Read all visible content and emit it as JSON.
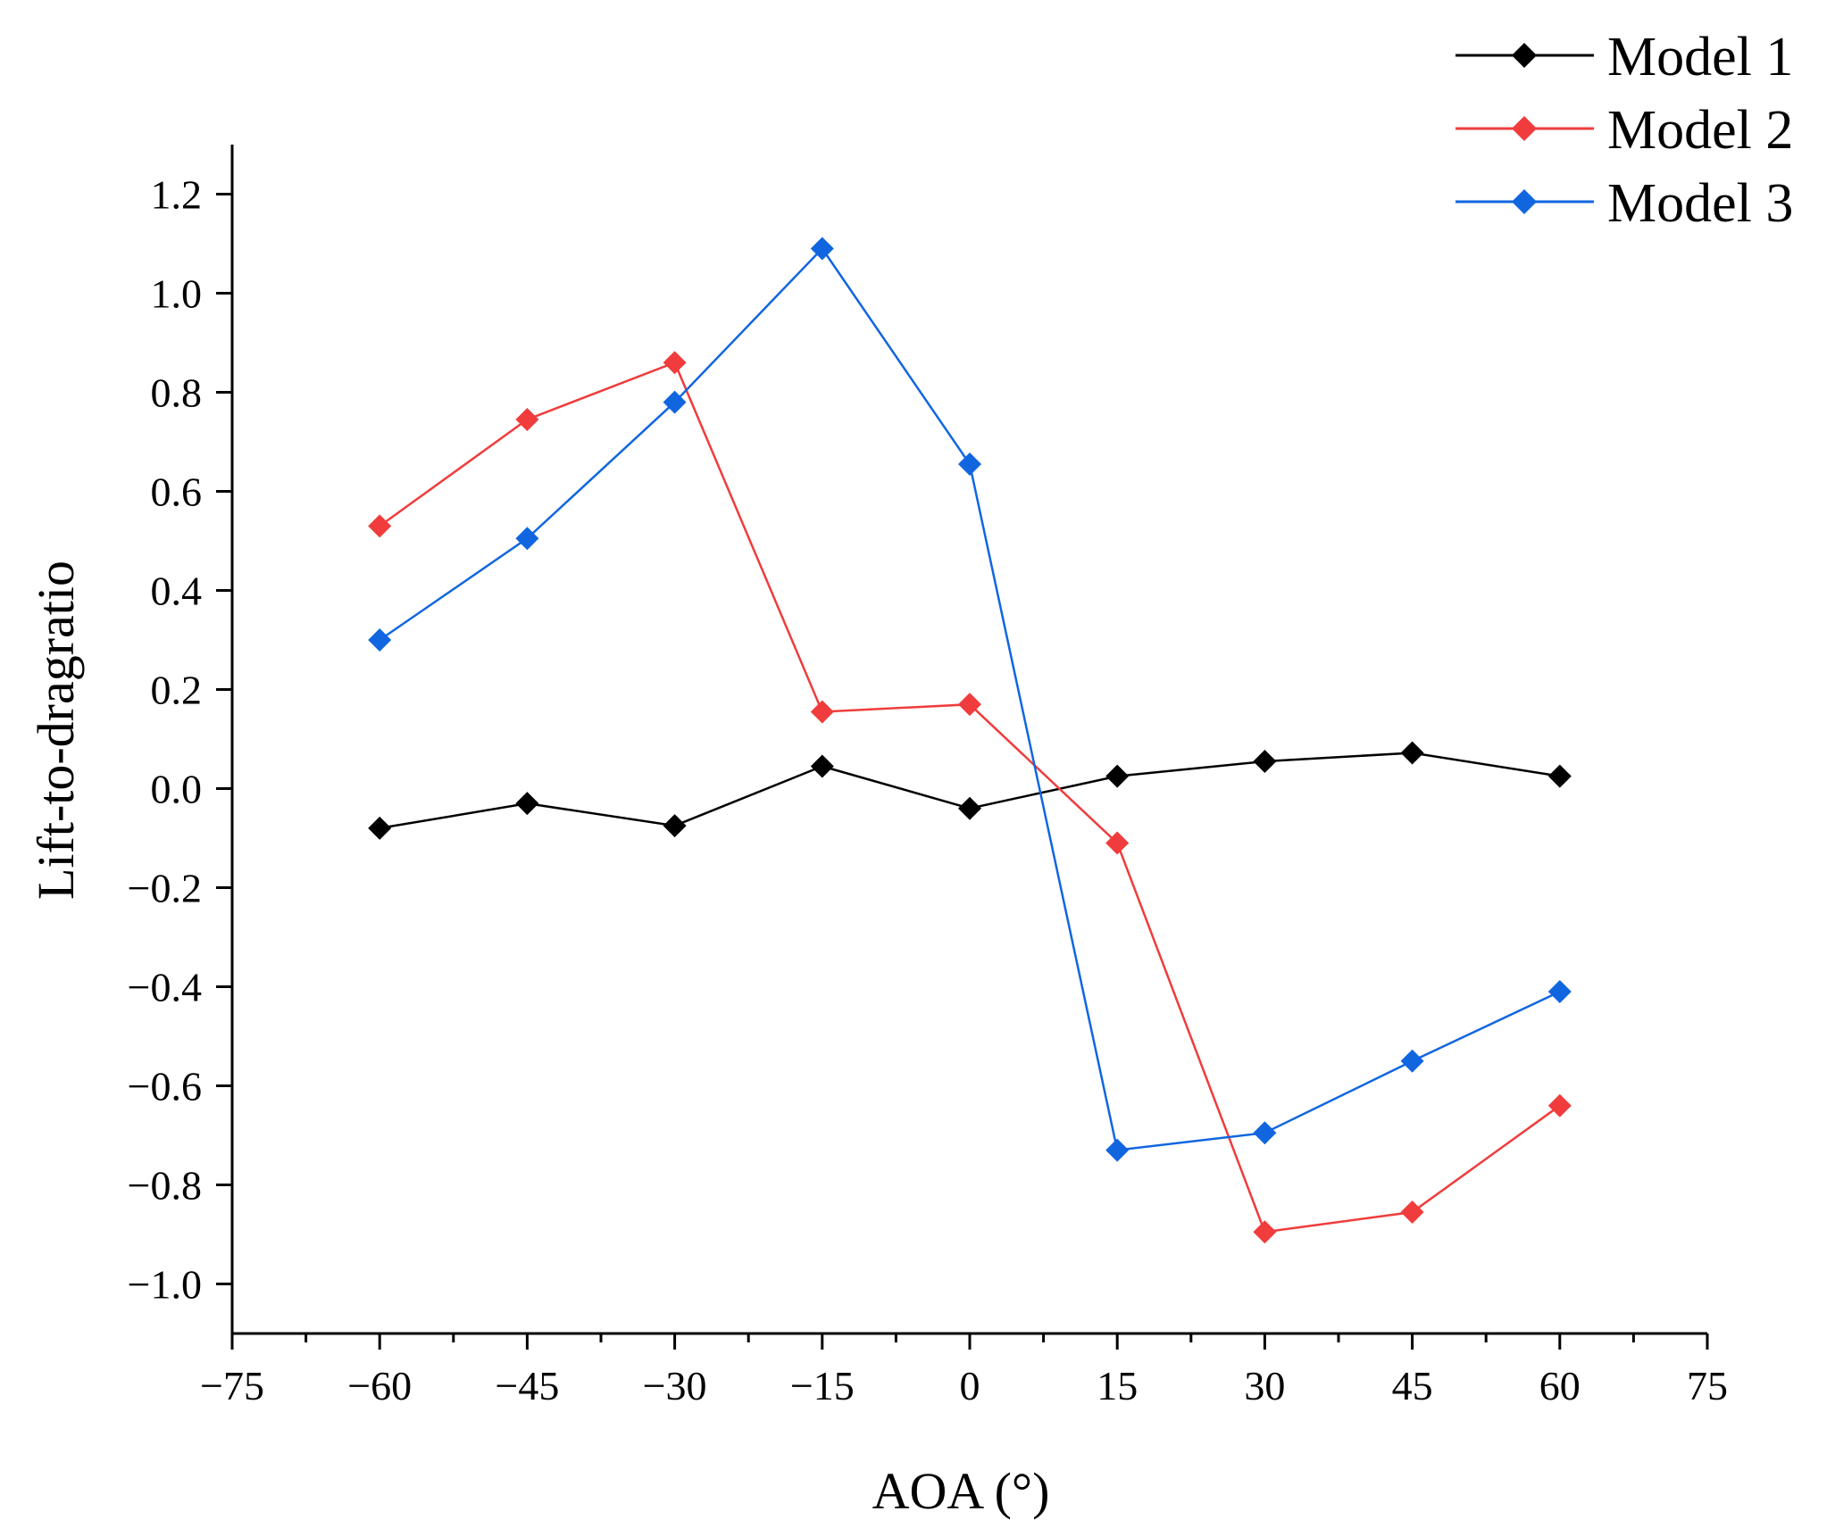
{
  "chart_data": {
    "type": "line",
    "title": "",
    "xlabel": "AOA (°)",
    "ylabel": "Lift-to-dragratio",
    "xlim": [
      -75,
      75
    ],
    "ylim": [
      -1.1,
      1.3
    ],
    "x_ticks": [
      -75,
      -60,
      -45,
      -30,
      -15,
      0,
      15,
      30,
      45,
      60,
      75
    ],
    "x_tick_labels": [
      "−75",
      "−60",
      "−45",
      "−30",
      "−15",
      "0",
      "15",
      "30",
      "45",
      "60",
      "75"
    ],
    "y_ticks": [
      1.2,
      1.0,
      0.8,
      0.6,
      0.4,
      0.2,
      0.0,
      -0.2,
      -0.4,
      -0.6,
      -0.8,
      -1.0
    ],
    "y_tick_labels": [
      "1.2",
      "1.0",
      "0.8",
      "0.6",
      "0.4",
      "0.2",
      "0.0",
      "−0.2",
      "−0.4",
      "−0.6",
      "−0.8",
      "−1.0"
    ],
    "grid": false,
    "legend_position": "top-right",
    "x": [
      -60,
      -45,
      -30,
      -15,
      0,
      15,
      30,
      45,
      60
    ],
    "series": [
      {
        "name": "Model 1",
        "color": "#000000",
        "values": [
          -0.08,
          -0.03,
          -0.075,
          0.045,
          -0.04,
          0.025,
          0.055,
          0.072,
          0.025
        ]
      },
      {
        "name": "Model 2",
        "color": "#f03c3c",
        "values": [
          0.53,
          0.745,
          0.86,
          0.155,
          0.17,
          -0.11,
          -0.895,
          -0.855,
          -0.64
        ]
      },
      {
        "name": "Model 3",
        "color": "#1166e0",
        "values": [
          0.3,
          0.505,
          0.78,
          1.09,
          0.655,
          -0.73,
          -0.695,
          -0.55,
          -0.41
        ]
      }
    ]
  }
}
